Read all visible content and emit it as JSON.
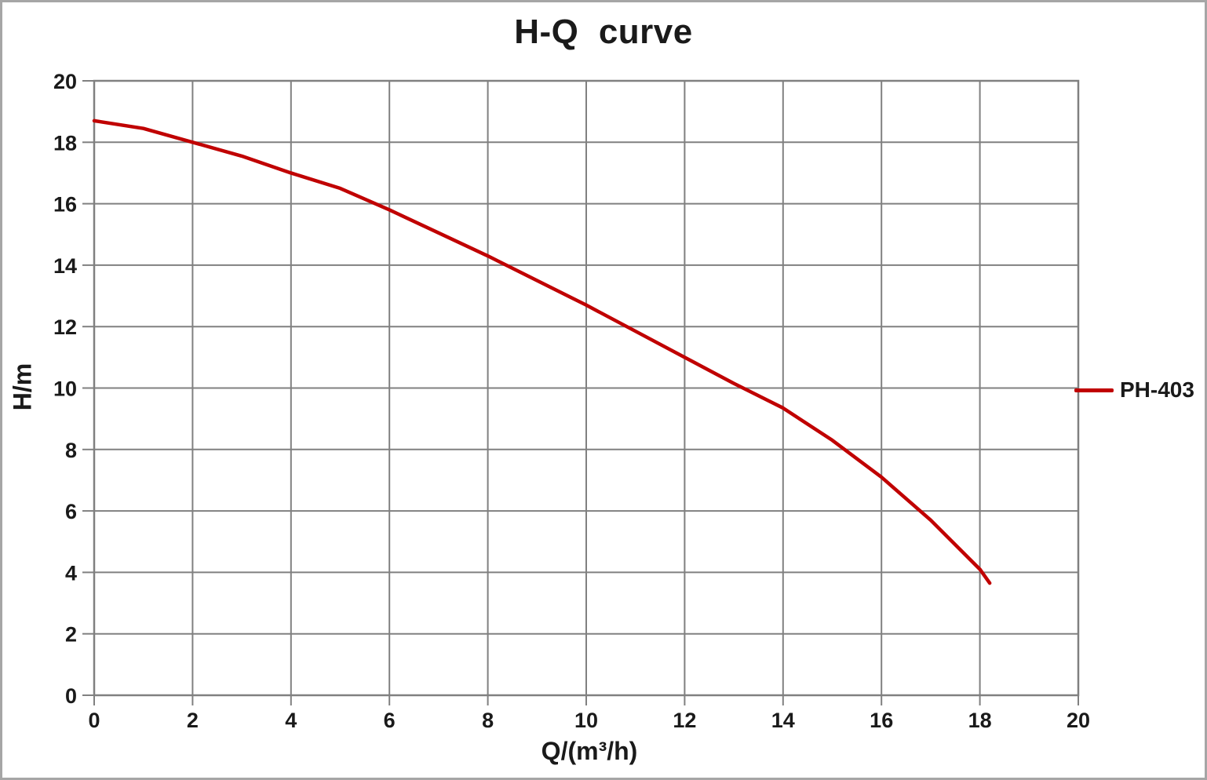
{
  "title": "H-Q  curve",
  "axes": {
    "x": {
      "label": "Q/(m³/h)",
      "min": 0,
      "max": 20,
      "tick_step": 2,
      "ticks": [
        0,
        2,
        4,
        6,
        8,
        10,
        12,
        14,
        16,
        18,
        20
      ]
    },
    "y": {
      "label": "H/m",
      "min": 0,
      "max": 20,
      "tick_step": 2,
      "ticks": [
        0,
        2,
        4,
        6,
        8,
        10,
        12,
        14,
        16,
        18,
        20
      ]
    }
  },
  "legend": {
    "series_label": "PH-403",
    "position": "right-middle"
  },
  "colors": {
    "series": "#c00000",
    "grid": "#808080",
    "plot_border": "#808080",
    "text": "#1a1a1a",
    "frame_border": "#a6a6a6",
    "background": "#ffffff"
  },
  "chart_data": {
    "type": "line",
    "title": "H-Q  curve",
    "xlabel": "Q/(m³/h)",
    "ylabel": "H/m",
    "xlim": [
      0,
      20
    ],
    "ylim": [
      0,
      20
    ],
    "grid": true,
    "grid_step": 2,
    "legend_position": "right-middle",
    "series": [
      {
        "name": "PH-403",
        "color": "#c00000",
        "points": [
          [
            0,
            18.7
          ],
          [
            1,
            18.45
          ],
          [
            2,
            18.0
          ],
          [
            3,
            17.55
          ],
          [
            4,
            17.0
          ],
          [
            5,
            16.5
          ],
          [
            6,
            15.8
          ],
          [
            7,
            15.05
          ],
          [
            8,
            14.3
          ],
          [
            9,
            13.5
          ],
          [
            10,
            12.7
          ],
          [
            11,
            11.85
          ],
          [
            12,
            11.0
          ],
          [
            13,
            10.15
          ],
          [
            14,
            9.35
          ],
          [
            15,
            8.3
          ],
          [
            16,
            7.1
          ],
          [
            17,
            5.7
          ],
          [
            18,
            4.1
          ],
          [
            18.2,
            3.65
          ]
        ]
      }
    ]
  }
}
